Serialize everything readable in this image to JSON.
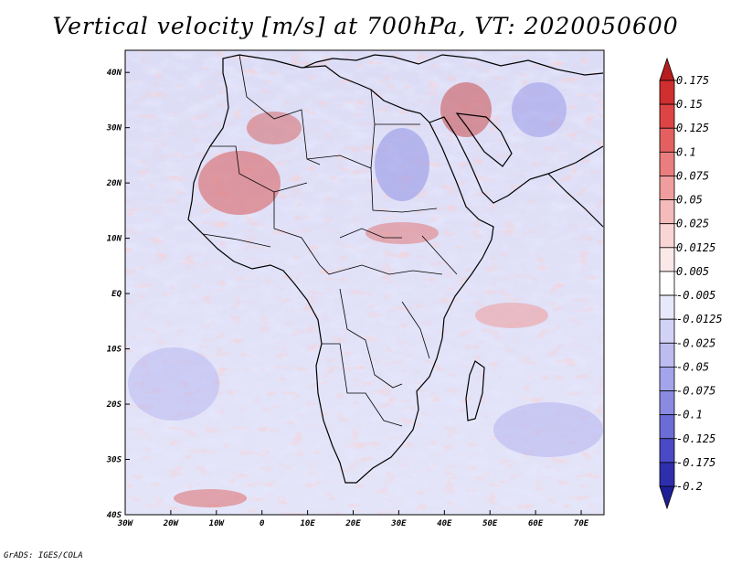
{
  "title": "Vertical velocity [m/s] at 700hPa, VT: 2020050600",
  "footer": "GrADS: IGES/COLA",
  "map": {
    "lat_labels": [
      "40N",
      "30N",
      "20N",
      "10N",
      "EQ",
      "10S",
      "20S",
      "30S",
      "40S"
    ],
    "lon_labels": [
      "30W",
      "20W",
      "10W",
      "0",
      "10E",
      "20E",
      "30E",
      "40E",
      "50E",
      "60E",
      "70E"
    ],
    "lat_values": [
      40,
      30,
      20,
      10,
      0,
      -10,
      -20,
      -30,
      -40
    ],
    "lon_values": [
      -30,
      -20,
      -10,
      0,
      10,
      20,
      30,
      40,
      50,
      60,
      70
    ],
    "extent": {
      "lon": [
        -30,
        75
      ],
      "lat": [
        -40,
        44
      ]
    }
  },
  "colorbar": {
    "labels": [
      "0.175",
      "0.15",
      "0.125",
      "0.1",
      "0.075",
      "0.05",
      "0.025",
      "0.0125",
      "0.005",
      "-0.005",
      "-0.0125",
      "-0.025",
      "-0.05",
      "-0.075",
      "-0.1",
      "-0.125",
      "-0.175",
      "-0.2"
    ],
    "colors": [
      "#b71d1d",
      "#cf2f2f",
      "#dd4444",
      "#e46060",
      "#ea7e7e",
      "#f09d9d",
      "#f5baba",
      "#f9d5d5",
      "#fbe8e8",
      "#ffffff",
      "#e8e8fb",
      "#d2d2f6",
      "#bcbcf1",
      "#a4a4ea",
      "#8a8ae2",
      "#6c6cd7",
      "#4a4ac6",
      "#2f2fad",
      "#1e1e96"
    ]
  }
}
